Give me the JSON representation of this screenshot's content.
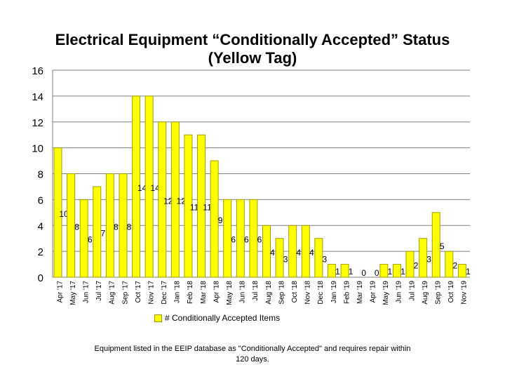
{
  "chart_data": {
    "type": "bar",
    "title_line1": "Electrical Equipment “Conditionally Accepted” Status",
    "title_line2": "(Yellow Tag)",
    "categories": [
      "Apr '17",
      "May '17",
      "Jun '17",
      "Jul '17",
      "Aug '17",
      "Sep '17",
      "Oct '17",
      "Nov '17",
      "Dec '17",
      "Jan '18",
      "Feb '18",
      "Mar '18",
      "Apr '18",
      "May '18",
      "Jun '18",
      "Jul '18",
      "Aug '18",
      "Sep '18",
      "Oct '18",
      "Nov '18",
      "Dec '18",
      "Jan '19",
      "Feb '19",
      "Mar '19",
      "Apr '19",
      "May '19",
      "Jun '19",
      "Jul '19",
      "Aug '19",
      "Sep '19",
      "Oct '19",
      "Nov '19"
    ],
    "series": [
      {
        "name": "# Conditionally Accepted Items",
        "values": [
          10,
          8,
          6,
          7,
          8,
          8,
          14,
          14,
          12,
          12,
          11,
          11,
          9,
          6,
          6,
          6,
          4,
          3,
          4,
          4,
          3,
          1,
          1,
          0,
          0,
          1,
          1,
          2,
          3,
          5,
          2,
          1
        ]
      }
    ],
    "yticks": [
      0,
      2,
      4,
      6,
      8,
      10,
      12,
      14,
      16
    ],
    "ylim": [
      0,
      16
    ],
    "grid": true,
    "legend_position": "bottom",
    "bar_color": "#ffff00",
    "bar_edge_color": "#a0a000"
  },
  "footnote": "Equipment listed in the EEIP database as \"Conditionally Accepted\" and requires repair within 120 days."
}
